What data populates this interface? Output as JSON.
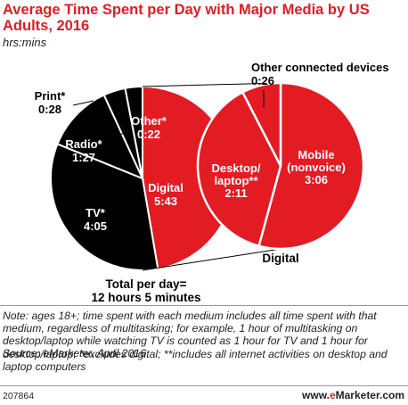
{
  "title": "Average Time Spent per Day with Major Media by US Adults, 2016",
  "subtitle": "hrs:mins",
  "note": "Note: ages 18+; time spent with each medium includes all time spent with that medium, regardless of multitasking; for example, 1 hour of multitasking on desktop/laptop while watching TV is counted as 1 hour for TV and 1 hour for desktop/laptop; *excludes digital; **includes all internet activities on desktop and laptop computers",
  "source": "Source: eMarketer, April 2016",
  "footer": {
    "id": "207864",
    "brand_prefix": "www.",
    "brand_e": "e",
    "brand_rest": "Marketer.com"
  },
  "colors": {
    "red": "#e31b23",
    "black": "#000000",
    "white": "#ffffff"
  },
  "chart_data": [
    {
      "type": "pie",
      "unit": "hrs:mins",
      "slices": [
        {
          "label_lines": [
            "Digital",
            "5:43"
          ],
          "value": "5:43",
          "minutes": 343,
          "color": "#e31b23"
        },
        {
          "label_lines": [
            "TV*",
            "4:05"
          ],
          "value": "4:05",
          "minutes": 245,
          "color": "#000000"
        },
        {
          "label_lines": [
            "Radio*",
            "1:27"
          ],
          "value": "1:27",
          "minutes": 87,
          "color": "#000000"
        },
        {
          "label_lines": [
            "Print*",
            "0:28"
          ],
          "value": "0:28",
          "minutes": 28,
          "color": "#000000"
        },
        {
          "label_lines": [
            "Other*",
            "0:22"
          ],
          "value": "0:22",
          "minutes": 22,
          "color": "#000000"
        }
      ],
      "total_lines": [
        "Total per day=",
        "12 hours 5 minutes"
      ]
    },
    {
      "type": "pie",
      "unit": "hrs:mins",
      "title": "Digital",
      "slices": [
        {
          "label_lines": [
            "Mobile",
            "(nonvoice)",
            "3:06"
          ],
          "value": "3:06",
          "minutes": 186,
          "color": "#e31b23"
        },
        {
          "label_lines": [
            "Desktop/",
            "laptop**",
            "2:11"
          ],
          "value": "2:11",
          "minutes": 131,
          "color": "#e31b23"
        },
        {
          "label_lines": [
            "Other connected devices",
            "0:26"
          ],
          "value": "0:26",
          "minutes": 26,
          "color": "#e31b23"
        }
      ]
    }
  ]
}
